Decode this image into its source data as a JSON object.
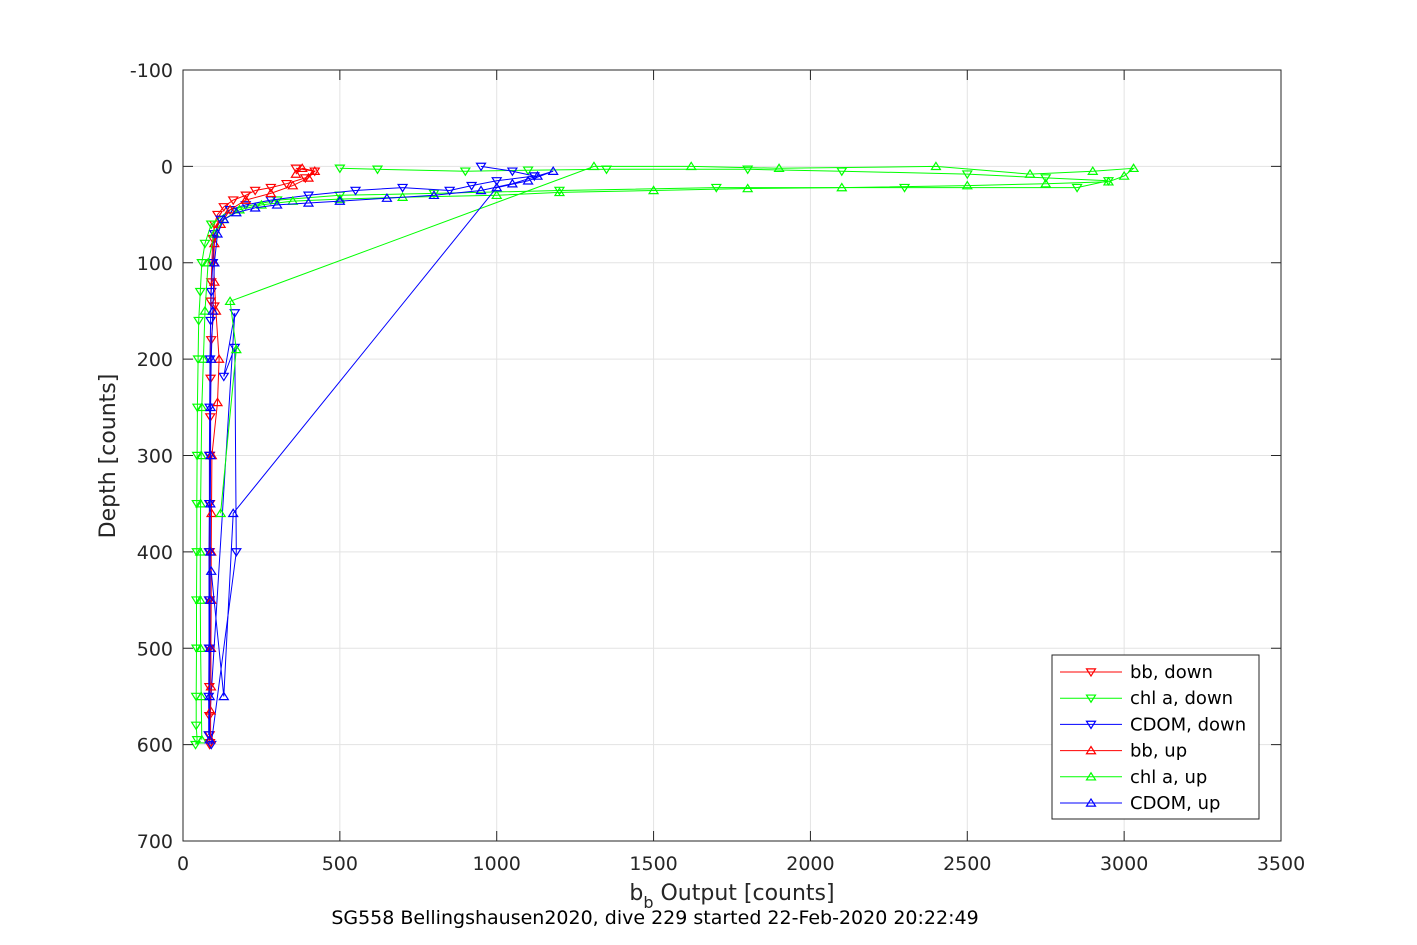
{
  "chart_data": {
    "type": "scatter",
    "title": "",
    "xlabel_main": "b",
    "xlabel_sub": "b",
    "xlabel_rest": " Output [counts]",
    "ylabel": "Depth [counts]",
    "caption": "SG558 Bellingshausen2020, dive 229 started 22-Feb-2020 20:22:49",
    "xlim": [
      0,
      3500
    ],
    "ylim": [
      -100,
      700
    ],
    "y_reversed": true,
    "grid": true,
    "xticks": [
      0,
      500,
      1000,
      1500,
      2000,
      2500,
      3000,
      3500
    ],
    "xtick_labels": [
      "0",
      "500",
      "1000",
      "1500",
      "2000",
      "2500",
      "3000",
      "3500"
    ],
    "yticks": [
      -100,
      0,
      100,
      200,
      300,
      400,
      500,
      600,
      700
    ],
    "ytick_labels": [
      "-100",
      "0",
      "100",
      "200",
      "300",
      "400",
      "500",
      "600",
      "700"
    ],
    "legend_position": "bottom-right",
    "series": [
      {
        "name": "bb, down",
        "color": "#ff0000",
        "marker": "triangle-down",
        "x": [
          360,
          420,
          390,
          330,
          280,
          230,
          200,
          160,
          130,
          110,
          100,
          95,
          92,
          90,
          88,
          100,
          90,
          88,
          87,
          86,
          86,
          85,
          85,
          85,
          84,
          84,
          85,
          85,
          86
        ],
        "y": [
          2,
          5,
          12,
          18,
          22,
          25,
          30,
          35,
          42,
          50,
          60,
          75,
          100,
          120,
          140,
          145,
          180,
          220,
          260,
          300,
          350,
          400,
          450,
          500,
          540,
          570,
          590,
          600,
          598
        ]
      },
      {
        "name": "chl a, down",
        "color": "#00ff00",
        "marker": "triangle-down",
        "x": [
          500,
          620,
          900,
          1100,
          1350,
          1800,
          2100,
          2500,
          2750,
          2950,
          2850,
          2300,
          1700,
          1200,
          800,
          500,
          300,
          150,
          90,
          70,
          60,
          55,
          50,
          48,
          46,
          45,
          44,
          44,
          43,
          43,
          42,
          42,
          45,
          40
        ],
        "y": [
          2,
          3,
          5,
          4,
          3,
          3,
          5,
          8,
          12,
          15,
          22,
          22,
          22,
          25,
          28,
          30,
          35,
          45,
          60,
          80,
          100,
          130,
          160,
          200,
          250,
          300,
          350,
          400,
          450,
          500,
          550,
          580,
          595,
          600
        ]
      },
      {
        "name": "CDOM, down",
        "color": "#0000ff",
        "marker": "triangle-down",
        "x": [
          950,
          1050,
          1120,
          1000,
          920,
          850,
          700,
          550,
          400,
          280,
          200,
          150,
          120,
          100,
          95,
          90,
          88,
          86,
          85,
          84,
          84,
          83,
          83,
          83,
          82,
          82,
          165,
          130,
          165,
          170,
          90
        ],
        "y": [
          0,
          5,
          10,
          15,
          20,
          25,
          22,
          25,
          30,
          35,
          40,
          45,
          55,
          70,
          100,
          130,
          160,
          200,
          250,
          300,
          350,
          400,
          450,
          500,
          550,
          590,
          152,
          218,
          188,
          400,
          600
        ]
      },
      {
        "name": "bb, up",
        "color": "#ff0000",
        "marker": "triangle-up",
        "x": [
          88,
          88,
          89,
          89,
          90,
          90,
          91,
          92,
          110,
          115,
          105,
          100,
          98,
          100,
          120,
          150,
          200,
          280,
          350,
          400,
          420,
          380,
          360
        ],
        "y": [
          595,
          565,
          540,
          500,
          450,
          400,
          360,
          300,
          245,
          200,
          150,
          120,
          100,
          80,
          60,
          45,
          35,
          28,
          20,
          12,
          5,
          2,
          8
        ]
      },
      {
        "name": "chl a, up",
        "color": "#00ff00",
        "marker": "triangle-up",
        "x": [
          60,
          58,
          56,
          55,
          55,
          56,
          58,
          60,
          65,
          70,
          80,
          100,
          130,
          180,
          250,
          350,
          500,
          700,
          1000,
          1200,
          1500,
          1800,
          2100,
          2500,
          2750,
          2950,
          3000,
          3030,
          2900,
          2700,
          2400,
          1900,
          1620,
          1310,
          150,
          170,
          120
        ],
        "y": [
          595,
          550,
          500,
          450,
          400,
          350,
          300,
          250,
          200,
          150,
          100,
          70,
          55,
          45,
          40,
          36,
          34,
          32,
          30,
          27,
          25,
          23,
          22,
          20,
          18,
          16,
          10,
          2,
          5,
          8,
          0,
          2,
          0,
          0,
          140,
          190,
          360
        ]
      },
      {
        "name": "CDOM, up",
        "color": "#0000ff",
        "marker": "triangle-up",
        "x": [
          85,
          85,
          86,
          86,
          87,
          87,
          88,
          88,
          90,
          95,
          100,
          110,
          130,
          170,
          230,
          300,
          400,
          500,
          650,
          800,
          950,
          1050,
          1130,
          1180,
          1100,
          1000,
          160,
          130,
          90
        ],
        "y": [
          595,
          550,
          500,
          450,
          400,
          350,
          300,
          250,
          200,
          150,
          100,
          70,
          55,
          48,
          43,
          40,
          38,
          36,
          33,
          30,
          25,
          18,
          10,
          5,
          15,
          22,
          360,
          550,
          420
        ]
      }
    ]
  }
}
